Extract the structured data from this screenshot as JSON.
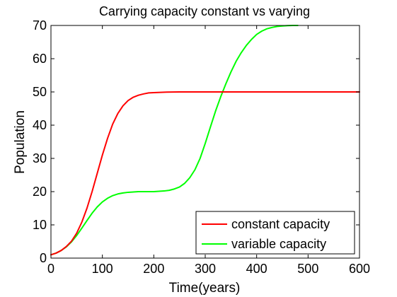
{
  "colors": {
    "background": "#ffffff",
    "axes": "#000000",
    "constant": "#ff0000",
    "variable": "#00ff00"
  },
  "chart_data": {
    "type": "line",
    "title": "Carrying capacity constant vs varying",
    "xlabel": "Time(years)",
    "ylabel": "Population",
    "xlim": [
      0,
      600
    ],
    "ylim": [
      0,
      70
    ],
    "xticks": [
      0,
      100,
      200,
      300,
      400,
      500,
      600
    ],
    "yticks": [
      0,
      10,
      20,
      30,
      40,
      50,
      60,
      70
    ],
    "grid": false,
    "legend_position": "bottom-right",
    "series": [
      {
        "name": "constant capacity",
        "color": "#ff0000",
        "x": [
          0,
          10,
          20,
          30,
          40,
          50,
          60,
          70,
          80,
          90,
          100,
          110,
          120,
          130,
          140,
          150,
          160,
          170,
          180,
          190,
          200,
          225,
          250,
          300,
          350,
          400,
          450,
          500,
          550,
          600
        ],
        "y": [
          1.0,
          1.5,
          2.3,
          3.5,
          5.1,
          7.5,
          10.8,
          15.0,
          20.0,
          25.5,
          31.0,
          36.0,
          40.3,
          43.5,
          45.8,
          47.4,
          48.4,
          49.0,
          49.4,
          49.7,
          49.8,
          49.95,
          50.0,
          50.0,
          50.0,
          50.0,
          50.0,
          50.0,
          50.0,
          50.0
        ]
      },
      {
        "name": "variable capacity",
        "color": "#00ff00",
        "x": [
          0,
          10,
          20,
          30,
          40,
          50,
          60,
          70,
          80,
          90,
          100,
          110,
          120,
          130,
          140,
          150,
          160,
          170,
          180,
          190,
          200,
          210,
          220,
          230,
          240,
          250,
          260,
          270,
          280,
          290,
          300,
          310,
          320,
          330,
          340,
          350,
          360,
          370,
          380,
          390,
          400,
          410,
          420,
          430,
          440,
          450,
          460,
          470,
          480
        ],
        "y": [
          1.0,
          1.5,
          2.3,
          3.4,
          4.9,
          6.8,
          9.0,
          11.3,
          13.5,
          15.4,
          16.9,
          18.0,
          18.8,
          19.3,
          19.6,
          19.8,
          19.9,
          20.0,
          20.0,
          20.0,
          20.0,
          20.1,
          20.2,
          20.4,
          20.8,
          21.4,
          22.5,
          24.2,
          26.6,
          30.0,
          34.5,
          39.4,
          44.2,
          48.5,
          52.4,
          56.0,
          59.2,
          61.8,
          64.0,
          65.8,
          67.3,
          68.3,
          69.0,
          69.4,
          69.7,
          69.85,
          69.95,
          70.0,
          70.0
        ]
      }
    ]
  }
}
